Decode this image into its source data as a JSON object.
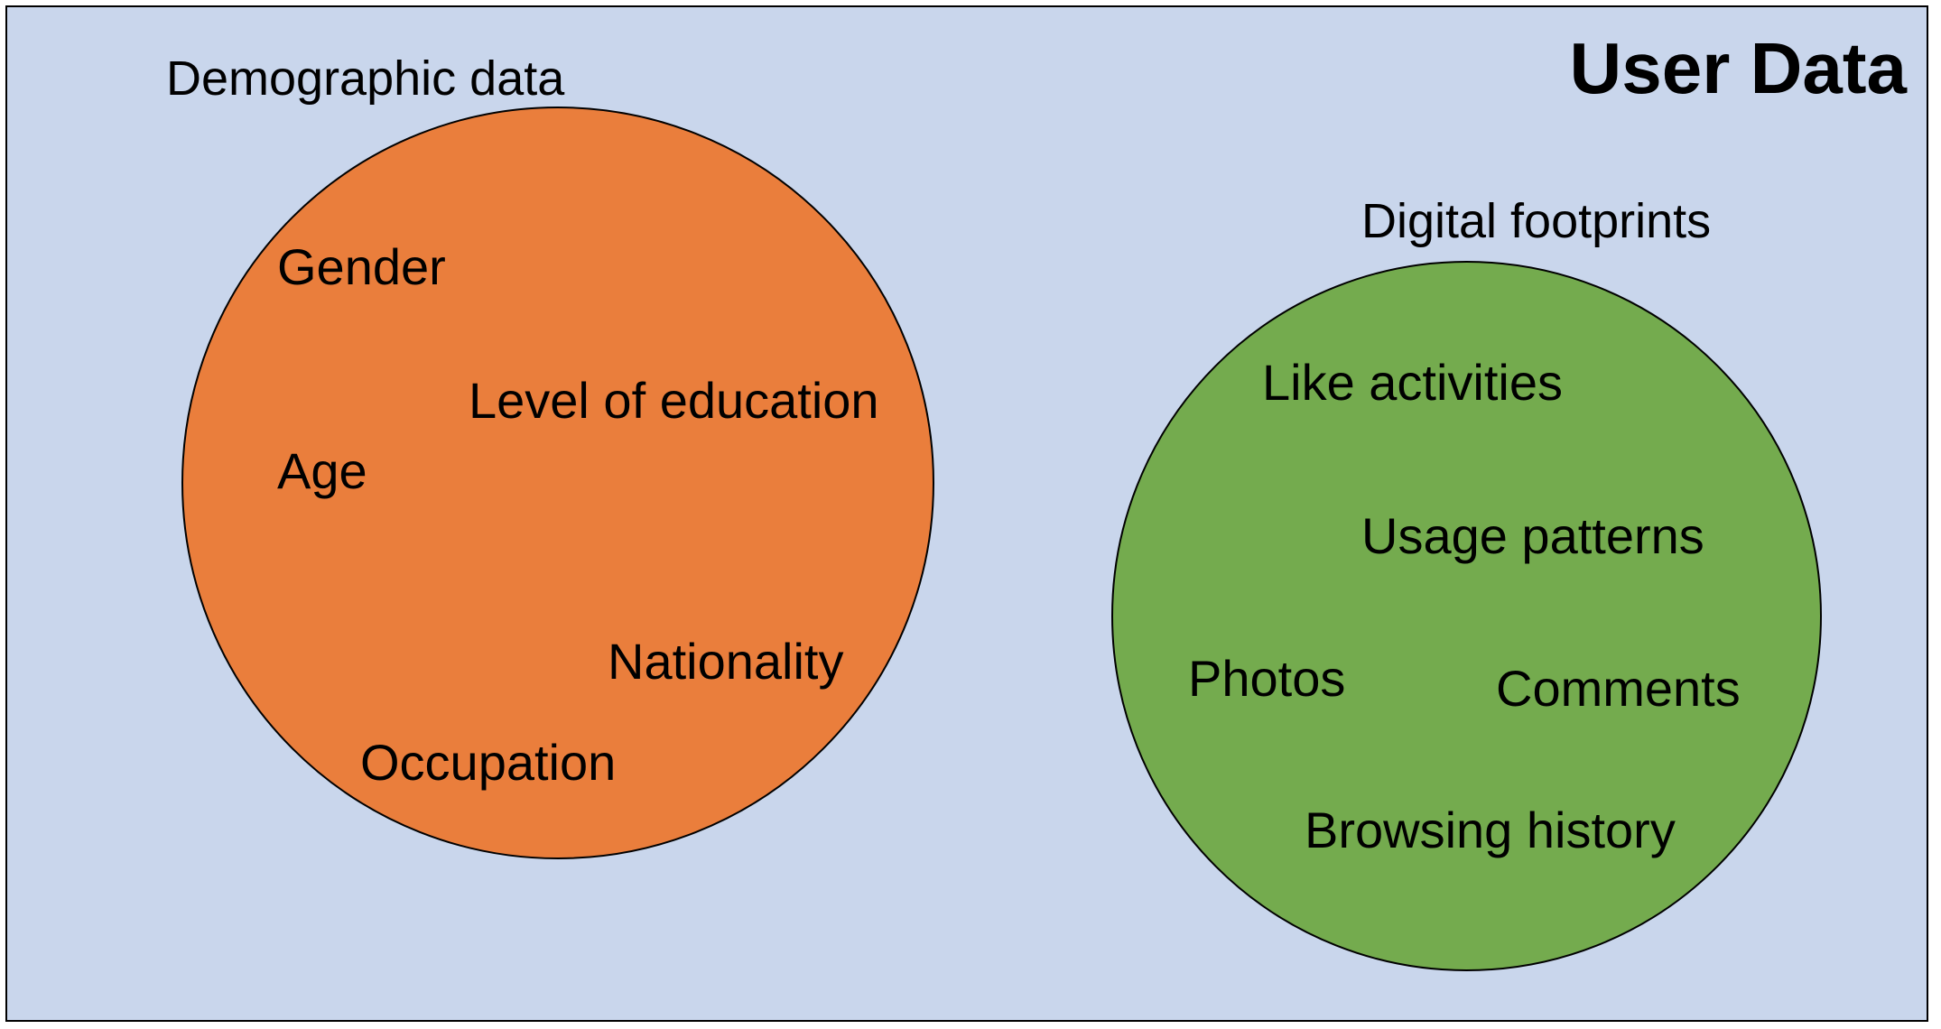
{
  "title": "User Data",
  "colors": {
    "background": "#c9d6ec",
    "border": "#000000",
    "demographic_fill": "#ea7e3c",
    "digital_fill": "#74ab4e",
    "text": "#000000"
  },
  "groups": {
    "demographic": {
      "label": "Demographic data",
      "items": [
        "Gender",
        "Level of education",
        "Age",
        "Nationality",
        "Occupation"
      ]
    },
    "digital": {
      "label": "Digital footprints",
      "items": [
        "Like activities",
        "Usage patterns",
        "Photos",
        "Comments",
        "Browsing history"
      ]
    }
  }
}
